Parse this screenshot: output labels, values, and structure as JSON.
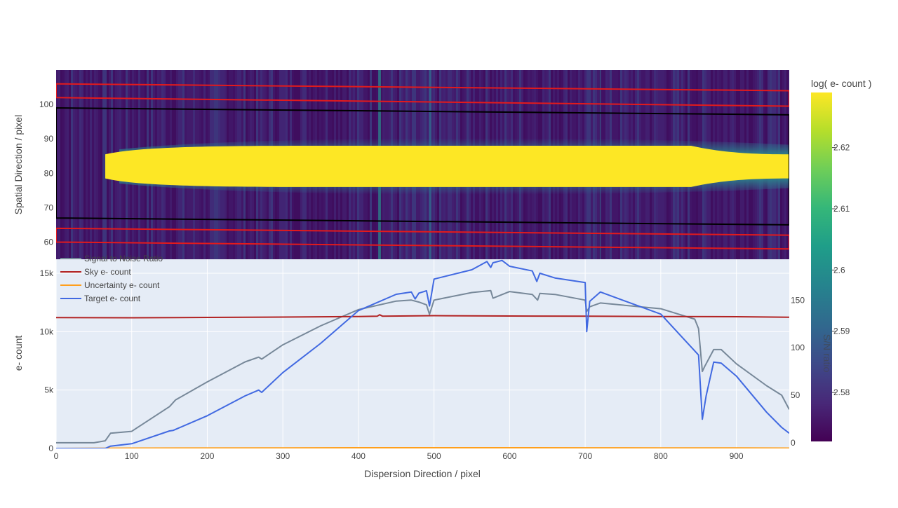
{
  "chart_data": [
    {
      "type": "heatmap",
      "ylabel": "Spatial Direction / pixel",
      "xlim": [
        0,
        970
      ],
      "ylim": [
        55,
        110
      ],
      "y_ticks": [
        60,
        70,
        80,
        90,
        100
      ],
      "colorbar": {
        "title": "log( e- count )",
        "range": [
          2.572,
          2.629
        ],
        "ticks": [
          2.58,
          2.59,
          2.6,
          2.61,
          2.62
        ],
        "colorscale": "viridis"
      },
      "trace": {
        "x_start": 65,
        "x_end": 970,
        "center": 82,
        "halfwidth_core": 3.5,
        "halfwidth_saturated": 6,
        "halfwidth_halo": 9
      },
      "apertures": [
        {
          "name": "sky-upper",
          "color": "#e31a1c",
          "x": [
            0,
            970
          ],
          "top": [
            106,
            104
          ],
          "bottom": [
            102,
            99.5
          ]
        },
        {
          "name": "target",
          "color": "#000000",
          "x": [
            0,
            970
          ],
          "top": [
            99,
            97
          ],
          "bottom": [
            67,
            65
          ]
        },
        {
          "name": "sky-lower",
          "color": "#e31a1c",
          "x": [
            0,
            970
          ],
          "top": [
            64,
            62
          ],
          "bottom": [
            60,
            58
          ]
        }
      ]
    },
    {
      "type": "line",
      "xlabel": "Dispersion Direction / pixel",
      "ylabel": "e- count",
      "y2label": "S/N ratio",
      "xlim": [
        0,
        970
      ],
      "ylim": [
        0,
        16200
      ],
      "y2lim": [
        -6,
        193
      ],
      "x_ticks": [
        0,
        100,
        200,
        300,
        400,
        500,
        600,
        700,
        800,
        900
      ],
      "y_ticks": [
        0,
        5000,
        10000,
        15000
      ],
      "y_tick_labels": [
        "0",
        "5k",
        "10k",
        "15k"
      ],
      "y2_ticks": [
        0,
        50,
        100,
        150
      ],
      "legend_position": "top-left",
      "series": [
        {
          "name": "Signal to Noise Ratio",
          "axis": "y2",
          "color": "#778899",
          "x": [
            0,
            50,
            65,
            72,
            100,
            150,
            158,
            200,
            250,
            268,
            272,
            300,
            350,
            400,
            450,
            470,
            480,
            490,
            494,
            500,
            550,
            575,
            578,
            600,
            630,
            637,
            640,
            660,
            700,
            702,
            706,
            720,
            800,
            845,
            850,
            855,
            858,
            870,
            880,
            900,
            940,
            960,
            970
          ],
          "y": [
            0,
            0,
            2,
            10,
            12,
            38,
            45,
            64,
            85,
            90,
            88,
            103,
            123,
            140,
            149,
            150,
            148,
            145,
            135,
            150,
            158,
            160,
            152,
            159,
            156,
            150,
            157,
            156,
            150,
            138,
            143,
            147,
            141,
            130,
            120,
            75,
            80,
            98,
            98,
            83,
            60,
            50,
            35
          ]
        },
        {
          "name": "Sky e- count",
          "axis": "y",
          "color": "#b22222",
          "x": [
            0,
            100,
            200,
            300,
            400,
            425,
            428,
            432,
            500,
            600,
            700,
            800,
            900,
            970
          ],
          "y": [
            11200,
            11190,
            11220,
            11250,
            11300,
            11330,
            11450,
            11320,
            11370,
            11340,
            11330,
            11300,
            11280,
            11240
          ]
        },
        {
          "name": "Uncertainty e- count",
          "axis": "y",
          "color": "#ff9f1c",
          "x": [
            0,
            100,
            300,
            400,
            500,
            600,
            700,
            800,
            900,
            970
          ],
          "y": [
            0,
            30,
            50,
            60,
            60,
            60,
            55,
            50,
            40,
            30
          ]
        },
        {
          "name": "Target e- count",
          "axis": "y",
          "color": "#4169e1",
          "x": [
            0,
            65,
            72,
            100,
            150,
            155,
            200,
            250,
            268,
            272,
            300,
            350,
            400,
            450,
            470,
            475,
            480,
            490,
            494,
            500,
            550,
            570,
            575,
            578,
            590,
            600,
            630,
            636,
            640,
            660,
            700,
            702,
            706,
            720,
            800,
            850,
            855,
            860,
            870,
            880,
            900,
            940,
            960,
            970
          ],
          "y": [
            0,
            0,
            200,
            400,
            1500,
            1550,
            2800,
            4500,
            5000,
            4800,
            6500,
            9000,
            11800,
            13200,
            13400,
            12800,
            13300,
            13500,
            12200,
            14500,
            15300,
            16000,
            15500,
            15900,
            16100,
            15600,
            15200,
            14300,
            15000,
            14600,
            14200,
            10000,
            12600,
            13400,
            11500,
            8000,
            2500,
            4500,
            7400,
            7300,
            6200,
            3100,
            1800,
            1300
          ]
        }
      ]
    }
  ]
}
